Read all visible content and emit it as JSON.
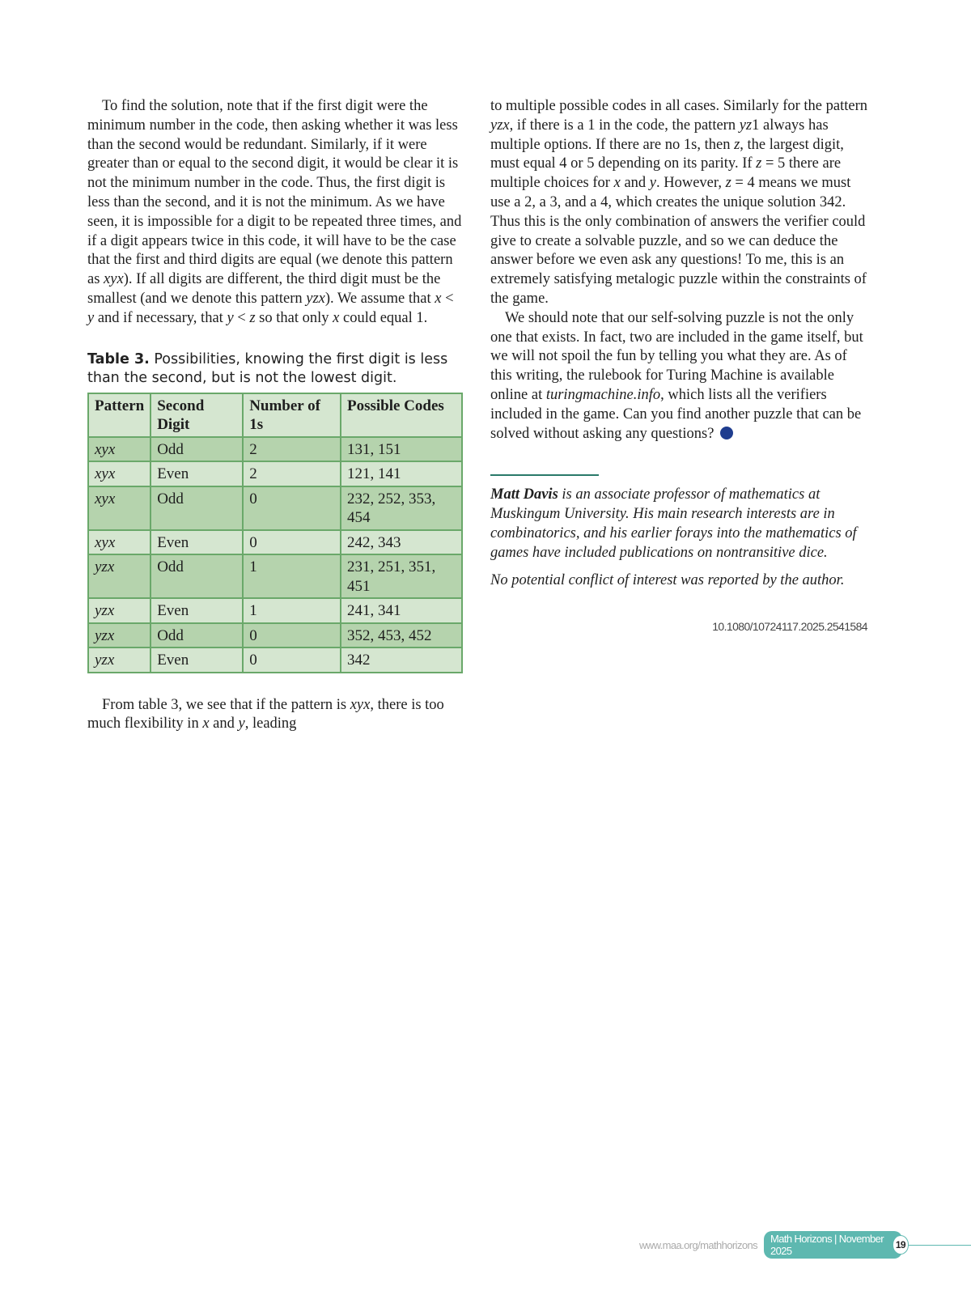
{
  "left": {
    "para1": [
      [
        "To find the solution, note that if the first digit were the minimum number in the code, then asking whether it was less than the second would be redundant. Similarly, if it were greater than or equal to the second digit, it would be clear it is not the minimum number in the code. Thus, the first digit is less than the second, and it is not the minimum. As we have seen, it is impossible for a digit to be repeated three times, and if a digit appears twice in this code, it will have to be the case that the first and third digits are equal (we denote this pattern as ",
        0
      ],
      [
        "xyx",
        1
      ],
      [
        "). If all digits are different, the third digit must be the smallest (and we denote this pattern ",
        0
      ],
      [
        "yzx",
        1
      ],
      [
        "). We assume that ",
        0
      ],
      [
        "x",
        1
      ],
      [
        " < ",
        0
      ],
      [
        "y",
        1
      ],
      [
        " and if necessary, that ",
        0
      ],
      [
        "y",
        1
      ],
      [
        " < ",
        0
      ],
      [
        "z",
        1
      ],
      [
        " so that only ",
        0
      ],
      [
        "x",
        1
      ],
      [
        " could equal 1.",
        0
      ]
    ],
    "caption_label": "Table 3.",
    "caption_text": " Possibilities, knowing the first digit is less than the second, but is not the lowest digit.",
    "para2": [
      [
        "From table 3, we see that if the pattern is ",
        0
      ],
      [
        "xyx",
        1
      ],
      [
        ", there is too much flexibility in ",
        0
      ],
      [
        "x",
        1
      ],
      [
        " and ",
        0
      ],
      [
        "y",
        1
      ],
      [
        ", leading",
        0
      ]
    ]
  },
  "table": {
    "headers": [
      "Pattern",
      "Second Digit",
      "Number of 1s",
      "Possible Codes"
    ],
    "rows": [
      [
        "xyx",
        "Odd",
        "2",
        "131, 151"
      ],
      [
        "xyx",
        "Even",
        "2",
        "121, 141"
      ],
      [
        "xyx",
        "Odd",
        "0",
        "232, 252, 353, 454"
      ],
      [
        "xyx",
        "Even",
        "0",
        "242, 343"
      ],
      [
        "yzx",
        "Odd",
        "1",
        "231, 251, 351, 451"
      ],
      [
        "yzx",
        "Even",
        "1",
        "241, 341"
      ],
      [
        "yzx",
        "Odd",
        "0",
        "352, 453, 452"
      ],
      [
        "yzx",
        "Even",
        "0",
        "342"
      ]
    ],
    "colors": {
      "border": "#6aa86a",
      "dark": "#b5d3ad",
      "light": "#d5e6d0"
    }
  },
  "right": {
    "para1": [
      [
        "to multiple possible codes in all cases. Similarly for the pattern ",
        0
      ],
      [
        "yzx",
        1
      ],
      [
        ", if there is a 1 in the code, the pattern ",
        0
      ],
      [
        "yz",
        1
      ],
      [
        "1 always has multiple options. If there are no 1s, then ",
        0
      ],
      [
        "z",
        1
      ],
      [
        ", the largest digit, must equal 4 or 5 depending on its parity. If ",
        0
      ],
      [
        "z",
        1
      ],
      [
        " = 5 there are multiple choices for ",
        0
      ],
      [
        "x",
        1
      ],
      [
        " and ",
        0
      ],
      [
        "y",
        1
      ],
      [
        ". However, ",
        0
      ],
      [
        "z",
        1
      ],
      [
        " = 4 means we must use a 2, a 3, and a 4, which creates the unique solution 342. Thus this is the only combination of answers the verifier could give to create a solvable puzzle, and so we can deduce the answer before we even ask any questions! To me, this is an extremely satisfying metalogic puzzle within the constraints of the game.",
        0
      ]
    ],
    "para2": [
      [
        "We should note that our self-solving puzzle is not the only one that exists. In fact, two are included in the game itself, but we will not spoil the fun by telling you what they are. As of this writing, the rulebook for Turing Machine is available online at ",
        0
      ],
      [
        "turingmachine.info",
        1
      ],
      [
        ", which lists all the verifiers included in the game. Can you find another puzzle that can be solved without asking any questions?",
        0
      ]
    ],
    "bio_name": "Matt Davis",
    "bio_text": " is an associate professor of mathematics at Muskingum University. His main research interests are in combinatorics, and his earlier forays into the mathematics of games have included publications on nontransitive dice.",
    "conflict": "No potential conflict of interest was reported by the author.",
    "doi": "10.1080/10724117.2025.2541584"
  },
  "footer": {
    "url": "www.maa.org/mathhorizons",
    "issue": "Math Horizons | November 2025",
    "page": "19",
    "accent": "#5eb8b0"
  },
  "end_mark_icon": "filled-circle"
}
